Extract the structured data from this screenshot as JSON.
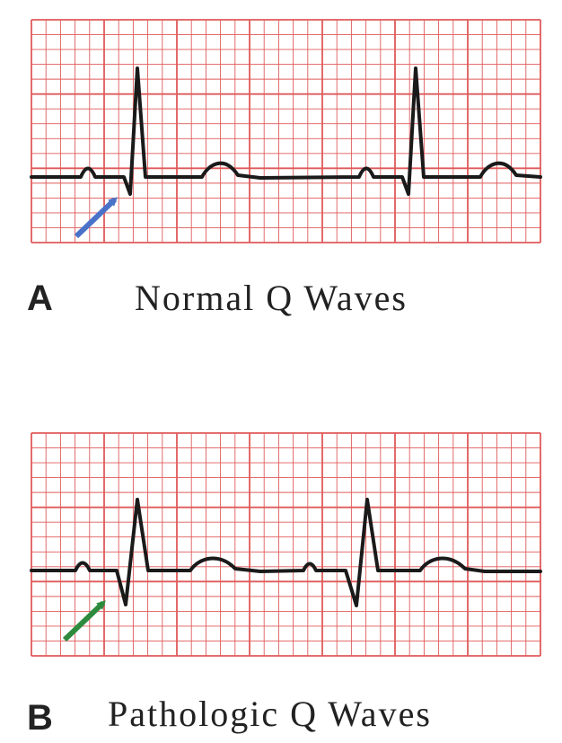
{
  "panels": [
    {
      "label": "A",
      "caption": "Normal Q Waves"
    },
    {
      "label": "B",
      "caption": "Pathologic Q Waves"
    }
  ]
}
